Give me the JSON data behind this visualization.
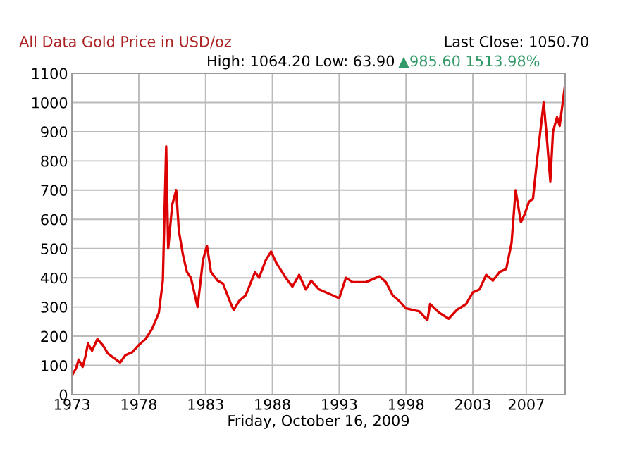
{
  "chart_data": {
    "type": "line",
    "title": "All Data Gold Price in USD/oz",
    "subtitle": "High: 1064.20 Low: 63.90",
    "xlabel": "Friday, October 16, 2009",
    "annotations": [
      "Last Close: 1050.70",
      "▲985.60 1513.98%"
    ],
    "series": [
      {
        "color": "#dd0000",
        "x": [
          1973.0,
          1973.3,
          1973.5,
          1973.8,
          1974.0,
          1974.2,
          1974.5,
          1974.9,
          1975.3,
          1975.7,
          1976.0,
          1976.6,
          1977.0,
          1977.5,
          1978.0,
          1978.5,
          1979.0,
          1979.5,
          1979.8,
          1980.05,
          1980.2,
          1980.5,
          1980.8,
          1981.0,
          1981.3,
          1981.6,
          1981.9,
          1982.4,
          1982.8,
          1983.1,
          1983.4,
          1983.9,
          1984.3,
          1984.9,
          1985.1,
          1985.5,
          1986.0,
          1986.7,
          1987.0,
          1987.5,
          1987.9,
          1988.3,
          1989.0,
          1989.5,
          1990.0,
          1990.5,
          1990.9,
          1991.5,
          1992.5,
          1993.0,
          1993.5,
          1994.0,
          1995.0,
          1996.0,
          1996.5,
          1997.0,
          1997.5,
          1998.0,
          1999.0,
          1999.6,
          1999.8,
          2000.5,
          2001.2,
          2001.8,
          2002.5,
          2003.0,
          2003.5,
          2004.0,
          2004.5,
          2005.0,
          2005.5,
          2005.9,
          2006.2,
          2006.6,
          2006.9,
          2007.2,
          2007.5,
          2007.8,
          2008.3,
          2008.5,
          2008.8,
          2009.0,
          2009.3,
          2009.5,
          2009.9
        ],
        "values": [
          65,
          90,
          120,
          95,
          130,
          175,
          150,
          190,
          170,
          140,
          130,
          110,
          135,
          145,
          170,
          190,
          225,
          280,
          390,
          850,
          500,
          650,
          700,
          560,
          480,
          420,
          400,
          300,
          460,
          510,
          420,
          390,
          380,
          310,
          290,
          320,
          340,
          420,
          400,
          460,
          490,
          450,
          400,
          370,
          410,
          360,
          390,
          360,
          340,
          330,
          400,
          385,
          385,
          405,
          385,
          340,
          320,
          295,
          285,
          255,
          310,
          280,
          260,
          290,
          310,
          350,
          360,
          410,
          390,
          420,
          430,
          520,
          700,
          590,
          620,
          660,
          670,
          800,
          1000,
          900,
          730,
          900,
          950,
          920,
          1060
        ]
      }
    ],
    "xlim": [
      1973,
      2009.9
    ],
    "ylim": [
      0,
      1100
    ],
    "xticks": [
      1973,
      1978,
      1983,
      1988,
      1993,
      1998,
      2003,
      2007
    ],
    "yticks": [
      0,
      100,
      200,
      300,
      400,
      500,
      600,
      700,
      800,
      900,
      1000,
      1100
    ],
    "grid": true
  }
}
